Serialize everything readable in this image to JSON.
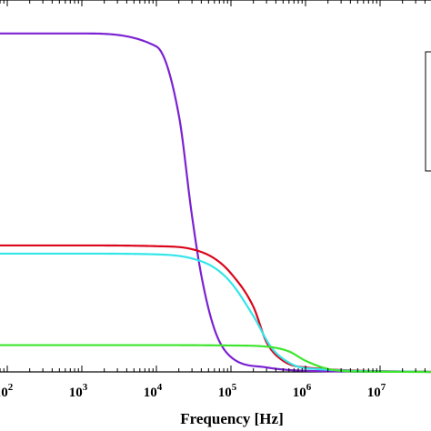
{
  "chart_data": {
    "type": "line",
    "title": "",
    "xlabel": "Frequency [Hz]",
    "ylabel": "",
    "x_scale": "log",
    "xlim": [
      60,
      50000000.0
    ],
    "ylim": [
      0,
      1
    ],
    "grid": false,
    "legend": {
      "placement": "top-right",
      "entries": []
    },
    "x_ticks": [
      {
        "exp": 2,
        "base": "10",
        "sup": "2"
      },
      {
        "exp": 3,
        "base": "10",
        "sup": "3"
      },
      {
        "exp": 4,
        "base": "10",
        "sup": "4"
      },
      {
        "exp": 5,
        "base": "10",
        "sup": "5"
      },
      {
        "exp": 6,
        "base": "10",
        "sup": "6"
      },
      {
        "exp": 7,
        "base": "10",
        "sup": "7"
      }
    ],
    "series": [
      {
        "color": "#7b22d2",
        "points": [
          [
            60,
            0.91
          ],
          [
            1000,
            0.91
          ],
          [
            10000,
            0.875
          ],
          [
            20000,
            0.69
          ],
          [
            30000,
            0.42
          ],
          [
            40000,
            0.26
          ],
          [
            60000,
            0.115
          ],
          [
            100000,
            0.04
          ],
          [
            300000,
            0.012
          ],
          [
            1000000,
            0.003
          ],
          [
            50000000,
            0.0
          ]
        ]
      },
      {
        "color": "#d9061c",
        "points": [
          [
            60,
            0.34
          ],
          [
            1000,
            0.34
          ],
          [
            10000,
            0.338
          ],
          [
            30000,
            0.33
          ],
          [
            60000,
            0.305
          ],
          [
            100000,
            0.265
          ],
          [
            200000,
            0.175
          ],
          [
            300000,
            0.08
          ],
          [
            500000,
            0.03
          ],
          [
            1000000,
            0.012
          ],
          [
            50000000,
            0.0
          ]
        ]
      },
      {
        "color": "#33e6ea",
        "points": [
          [
            60,
            0.318
          ],
          [
            1000,
            0.318
          ],
          [
            10000,
            0.316
          ],
          [
            30000,
            0.305
          ],
          [
            60000,
            0.28
          ],
          [
            100000,
            0.24
          ],
          [
            200000,
            0.15
          ],
          [
            350000,
            0.065
          ],
          [
            600000,
            0.025
          ],
          [
            1000000,
            0.01
          ],
          [
            50000000,
            0.0
          ]
        ]
      },
      {
        "color": "#3ee52e",
        "points": [
          [
            60,
            0.072
          ],
          [
            10000,
            0.072
          ],
          [
            100000,
            0.071
          ],
          [
            300000,
            0.068
          ],
          [
            600000,
            0.055
          ],
          [
            1000000,
            0.03
          ],
          [
            2000000,
            0.008
          ],
          [
            5000000,
            0.001
          ],
          [
            50000000,
            0.0
          ]
        ]
      }
    ]
  }
}
